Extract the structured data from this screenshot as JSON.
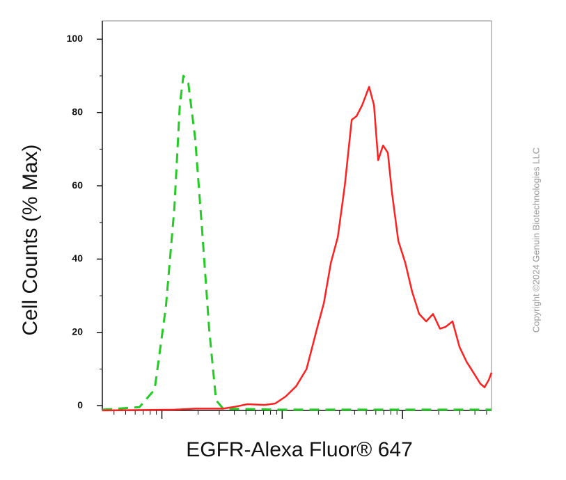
{
  "chart_data": {
    "type": "line",
    "x_label": "EGFR-Alexa Fluor® 647",
    "y_label": "Cell Counts (% Max)",
    "watermark": "Copyright ©2024 Genuin Biotechnologies LLC",
    "log_x": true,
    "xlim": [
      32,
      54950
    ],
    "xticks": [
      100,
      1000,
      10000
    ],
    "ylim": [
      -1.3,
      105
    ],
    "yticks": [
      0,
      20,
      40,
      60,
      80,
      100
    ],
    "series": [
      {
        "color": "#22cc22",
        "dash": true,
        "x": [
          32,
          65,
          87,
          108,
          127,
          141,
          151,
          166,
          189,
          216,
          247,
          282,
          323,
          935,
          3540,
          54950
        ],
        "values": [
          -1.1,
          -0.4,
          4.4,
          27,
          54,
          82,
          90,
          88,
          73,
          48,
          21,
          1.5,
          -0.8,
          -1.1,
          -1.1,
          -1.1
        ]
      },
      {
        "color": "#ff2020",
        "dash": false,
        "x": [
          32,
          127,
          189,
          323,
          421,
          514,
          716,
          875,
          1069,
          1306,
          1593,
          1946,
          2222,
          2541,
          2898,
          3311,
          3784,
          4150,
          4624,
          5282,
          5799,
          6280,
          6890,
          7560,
          8190,
          9230,
          10540,
          12040,
          13770,
          15740,
          17950,
          20510,
          22810,
          26060,
          29790,
          34040,
          38900,
          44360,
          48080,
          52120,
          54950
        ],
        "values": [
          -1.3,
          -1.1,
          -0.8,
          -0.8,
          -0.2,
          0.4,
          0.2,
          0.6,
          2.5,
          5.3,
          10,
          21,
          28,
          39,
          46,
          60,
          78,
          79,
          82,
          87,
          82,
          67,
          71,
          69,
          58,
          45,
          39,
          31,
          25,
          23,
          25,
          21,
          21.5,
          23,
          16,
          12,
          9,
          6,
          5,
          7,
          9
        ]
      }
    ]
  }
}
